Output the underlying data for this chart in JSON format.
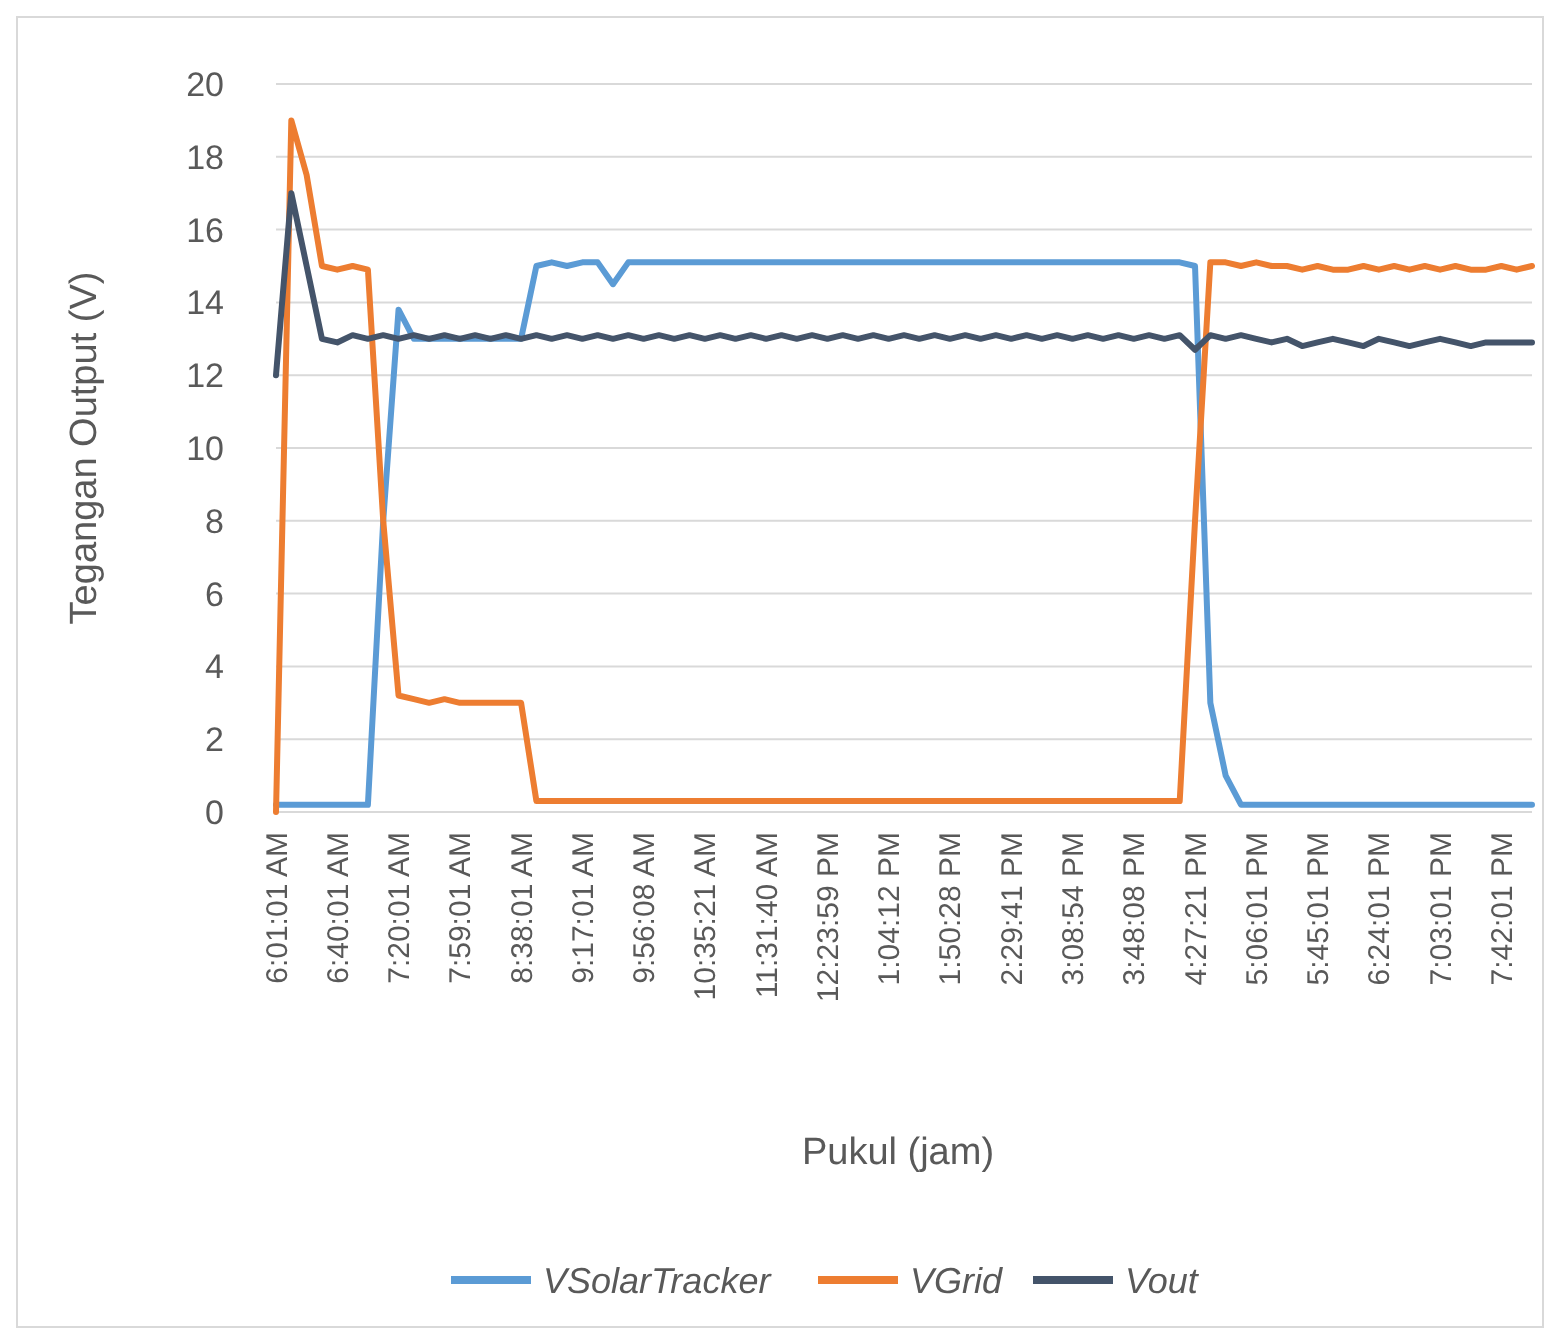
{
  "chart_data": {
    "type": "line",
    "xlabel": "Pukul (jam)",
    "ylabel": "Tegangan Output (V)",
    "categories": [
      "6:01:01 AM",
      null,
      null,
      null,
      "6:40:01 AM",
      null,
      null,
      null,
      "7:20:01 AM",
      null,
      null,
      null,
      "7:59:01 AM",
      null,
      null,
      null,
      "8:38:01 AM",
      null,
      null,
      null,
      "9:17:01 AM",
      null,
      null,
      null,
      "9:56:08 AM",
      null,
      null,
      null,
      "10:35:21 AM",
      null,
      null,
      null,
      "11:31:40 AM",
      null,
      null,
      null,
      "12:23:59 PM",
      null,
      null,
      null,
      "1:04:12 PM",
      null,
      null,
      null,
      "1:50:28 PM",
      null,
      null,
      null,
      "2:29:41 PM",
      null,
      null,
      null,
      "3:08:54 PM",
      null,
      null,
      null,
      "3:48:08 PM",
      null,
      null,
      null,
      "4:27:21 PM",
      null,
      null,
      null,
      "5:06:01 PM",
      null,
      null,
      null,
      "5:45:01 PM",
      null,
      null,
      null,
      "6:24:01 PM",
      null,
      null,
      null,
      "7:03:01 PM",
      null,
      null,
      null,
      "7:42:01 PM",
      null,
      null
    ],
    "series": [
      {
        "name": "VSolarTracker",
        "color": "#5b9bd5",
        "values": [
          0.2,
          0.2,
          0.2,
          0.2,
          0.2,
          0.2,
          0.2,
          8,
          13.8,
          13,
          13,
          13,
          13,
          13,
          13,
          13,
          13,
          15,
          15.1,
          15,
          15.1,
          15.1,
          14.5,
          15.1,
          15.1,
          15.1,
          15.1,
          15.1,
          15.1,
          15.1,
          15.1,
          15.1,
          15.1,
          15.1,
          15.1,
          15.1,
          15.1,
          15.1,
          15.1,
          15.1,
          15.1,
          15.1,
          15.1,
          15.1,
          15.1,
          15.1,
          15.1,
          15.1,
          15.1,
          15.1,
          15.1,
          15.1,
          15.1,
          15.1,
          15.1,
          15.1,
          15.1,
          15.1,
          15.1,
          15.1,
          15,
          3,
          1,
          0.2,
          0.2,
          0.2,
          0.2,
          0.2,
          0.2,
          0.2,
          0.2,
          0.2,
          0.2,
          0.2,
          0.2,
          0.2,
          0.2,
          0.2,
          0.2,
          0.2,
          0.2,
          0.2,
          0.2
        ]
      },
      {
        "name": "VGrid",
        "color": "#ed7d31",
        "values": [
          0,
          19,
          17.5,
          15,
          14.9,
          15,
          14.9,
          8,
          3.2,
          3.1,
          3,
          3.1,
          3,
          3,
          3,
          3,
          3,
          0.3,
          0.3,
          0.3,
          0.3,
          0.3,
          0.3,
          0.3,
          0.3,
          0.3,
          0.3,
          0.3,
          0.3,
          0.3,
          0.3,
          0.3,
          0.3,
          0.3,
          0.3,
          0.3,
          0.3,
          0.3,
          0.3,
          0.3,
          0.3,
          0.3,
          0.3,
          0.3,
          0.3,
          0.3,
          0.3,
          0.3,
          0.3,
          0.3,
          0.3,
          0.3,
          0.3,
          0.3,
          0.3,
          0.3,
          0.3,
          0.3,
          0.3,
          0.3,
          8,
          15.1,
          15.1,
          15,
          15.1,
          15,
          15,
          14.9,
          15,
          14.9,
          14.9,
          15,
          14.9,
          15,
          14.9,
          15,
          14.9,
          15,
          14.9,
          14.9,
          15,
          14.9,
          15
        ]
      },
      {
        "name": "Vout",
        "color": "#44546a",
        "values": [
          12,
          17,
          15,
          13,
          12.9,
          13.1,
          13,
          13.1,
          13,
          13.1,
          13,
          13.1,
          13,
          13.1,
          13,
          13.1,
          13,
          13.1,
          13,
          13.1,
          13,
          13.1,
          13,
          13.1,
          13,
          13.1,
          13,
          13.1,
          13,
          13.1,
          13,
          13.1,
          13,
          13.1,
          13,
          13.1,
          13,
          13.1,
          13,
          13.1,
          13,
          13.1,
          13,
          13.1,
          13,
          13.1,
          13,
          13.1,
          13,
          13.1,
          13,
          13.1,
          13,
          13.1,
          13,
          13.1,
          13,
          13.1,
          13,
          13.1,
          12.7,
          13.1,
          13,
          13.1,
          13,
          12.9,
          13,
          12.8,
          12.9,
          13,
          12.9,
          12.8,
          13,
          12.9,
          12.8,
          12.9,
          13,
          12.9,
          12.8,
          12.9,
          12.9,
          12.9,
          12.9
        ]
      }
    ],
    "ylim": [
      0,
      20
    ],
    "yticks": [
      0,
      2,
      4,
      6,
      8,
      10,
      12,
      14,
      16,
      18,
      20
    ],
    "grid": "y",
    "legend": "bottom",
    "marker": "none",
    "line_style": "solid"
  }
}
